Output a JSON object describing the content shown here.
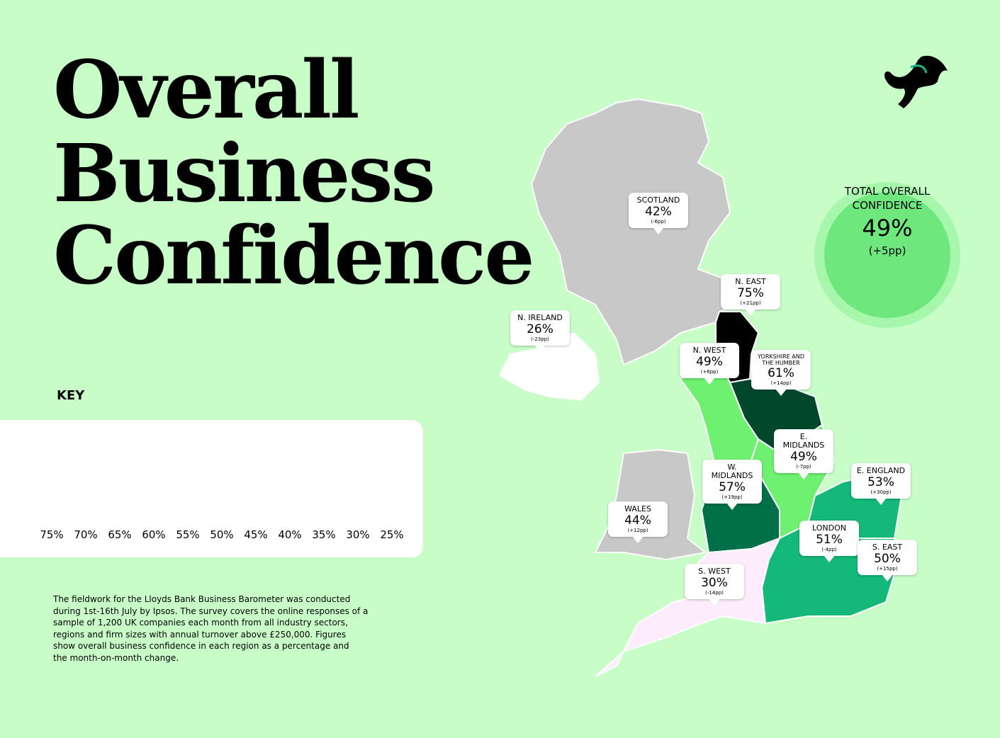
{
  "title_lines": [
    "Overall",
    "Business",
    "Confidence"
  ],
  "key": {
    "title": "KEY",
    "colors": [
      "#000000",
      "#333335",
      "#00472c",
      "#007048",
      "#14b878",
      "#6ef070",
      "#c8c8c8",
      "#fcdcfc",
      "#fdecfd",
      "#ffffff"
    ],
    "labels": [
      "75%",
      "70%",
      "65%",
      "60%",
      "55%",
      "50%",
      "45%",
      "40%",
      "35%",
      "30%",
      "25%"
    ]
  },
  "total": {
    "label_lines": [
      "TOTAL OVERALL",
      "CONFIDENCE"
    ],
    "value": "49%",
    "change": "(+5pp)"
  },
  "regions": [
    {
      "name": "SCOTLAND",
      "value": "42%",
      "change": "(-6pp)",
      "color": "#c8c8c8"
    },
    {
      "name": "N. EAST",
      "value": "75%",
      "change": "(+21pp)",
      "color": "#000000"
    },
    {
      "name": "N. IRELAND",
      "value": "26%",
      "change": "(-23pp)",
      "color": "#ffffff"
    },
    {
      "name": "N. WEST",
      "value": "49%",
      "change": "(+6pp)",
      "color": "#6ef070"
    },
    {
      "name": "YORKSHIRE AND THE HUMBER",
      "value": "61%",
      "change": "(+14pp)",
      "color": "#00472c"
    },
    {
      "name": "E. MIDLANDS",
      "value": "49%",
      "change": "(-7pp)",
      "color": "#6ef070"
    },
    {
      "name": "W. MIDLANDS",
      "value": "57%",
      "change": "(+19pp)",
      "color": "#007048"
    },
    {
      "name": "E. ENGLAND",
      "value": "53%",
      "change": "(+30pp)",
      "color": "#14b878"
    },
    {
      "name": "WALES",
      "value": "44%",
      "change": "(+12pp)",
      "color": "#c8c8c8"
    },
    {
      "name": "LONDON",
      "value": "51%",
      "change": "(-4pp)",
      "color": "#14b878"
    },
    {
      "name": "S. EAST",
      "value": "50%",
      "change": "(+15pp)",
      "color": "#14b878"
    },
    {
      "name": "S. WEST",
      "value": "30%",
      "change": "(-14pp)",
      "color": "#fcecfc"
    }
  ],
  "footnote_lines": [
    "The fieldwork for the Lloyds Bank Business Barometer was conducted",
    "during 1st-16th July by Ipsos. The survey covers the online responses of a",
    "sample of 1,200 UK companies each month from all industry sectors,",
    "regions and firm sizes with annual turnover above £250,000. Figures",
    "show overall business confidence in each region as a percentage and",
    "the month-on-month change."
  ]
}
